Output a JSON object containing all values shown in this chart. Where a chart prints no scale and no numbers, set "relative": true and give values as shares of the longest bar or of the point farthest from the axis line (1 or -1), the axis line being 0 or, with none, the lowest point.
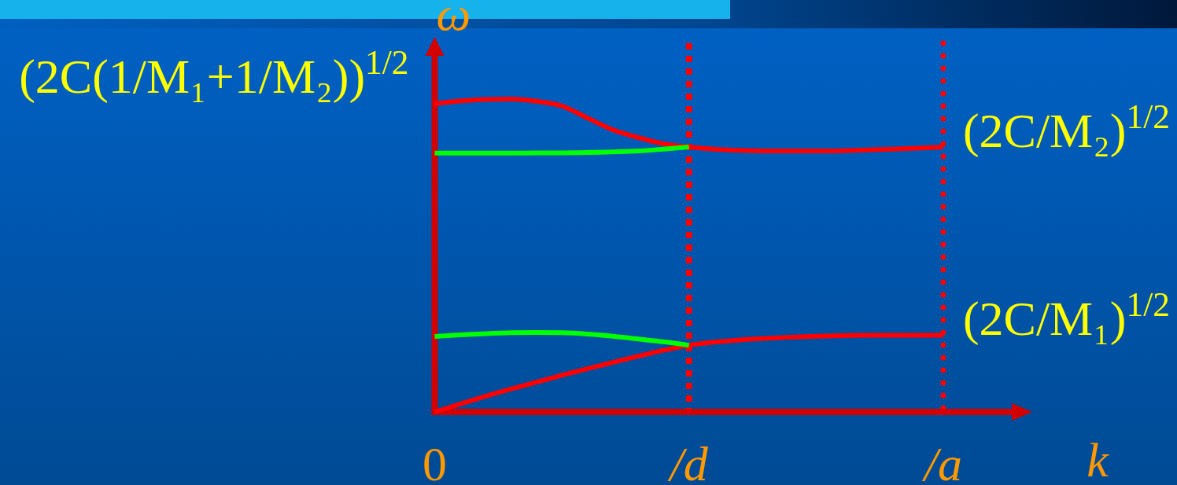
{
  "chart_data": {
    "type": "line",
    "relative": true,
    "xlabel": "k",
    "ylabel": "ω",
    "categories": [
      "0",
      null,
      null,
      null,
      null,
      null,
      null,
      null,
      null,
      null,
      "/d",
      null,
      null,
      null,
      null,
      null,
      null,
      null,
      null,
      null,
      "/a",
      null,
      null,
      null
    ],
    "series": [
      {
        "color": "#ff0000",
        "values": [
          0.985,
          0.994,
          0.999,
          1.0,
          0.993,
          0.978,
          0.94,
          0.902,
          0.877,
          0.857,
          0.847,
          0.84,
          0.836,
          0.834,
          0.834,
          0.834,
          0.835,
          0.837,
          0.84,
          0.843,
          0.847,
          null,
          null,
          null
        ]
      },
      {
        "color": "#00ff00",
        "values": [
          0.827,
          0.827,
          0.827,
          0.827,
          0.828,
          0.828,
          0.829,
          0.831,
          0.834,
          0.84,
          0.847,
          null,
          null,
          null,
          null,
          null,
          null,
          null,
          null,
          null,
          null,
          null,
          null,
          null
        ]
      },
      {
        "color": "#ff0000",
        "values": [
          0,
          0.025,
          0.05,
          0.073,
          0.095,
          0.117,
          0.138,
          0.158,
          0.178,
          0.197,
          0.213,
          0.223,
          0.23,
          0.235,
          0.239,
          0.242,
          0.244,
          0.245,
          0.245,
          0.245,
          0.245,
          null,
          null,
          null
        ]
      },
      {
        "color": "#00ff00",
        "values": [
          0.241,
          0.246,
          0.25,
          0.253,
          0.254,
          0.253,
          0.249,
          0.242,
          0.233,
          0.224,
          0.213,
          null,
          null,
          null,
          null,
          null,
          null,
          null,
          null,
          null,
          null,
          null,
          null,
          null
        ]
      }
    ],
    "ref_lines": [
      {
        "axis": "x",
        "value": "/d",
        "color": "#ff0000",
        "line_style": "dashed"
      },
      {
        "axis": "x",
        "value": "/a",
        "color": "#ff0000",
        "line_style": "dotted"
      }
    ],
    "annotations": [
      {
        "text": "(2C(1/M₁+1/M₂))$^{1/2}$",
        "x": "0",
        "y": 0.985
      },
      {
        "text": "(2C/M₂)$^{1/2}$",
        "x": "/a",
        "y": 0.847
      },
      {
        "text": "(2C/M₁)$^{1/2}$",
        "x": "/a",
        "y": 0.245
      }
    ]
  }
}
